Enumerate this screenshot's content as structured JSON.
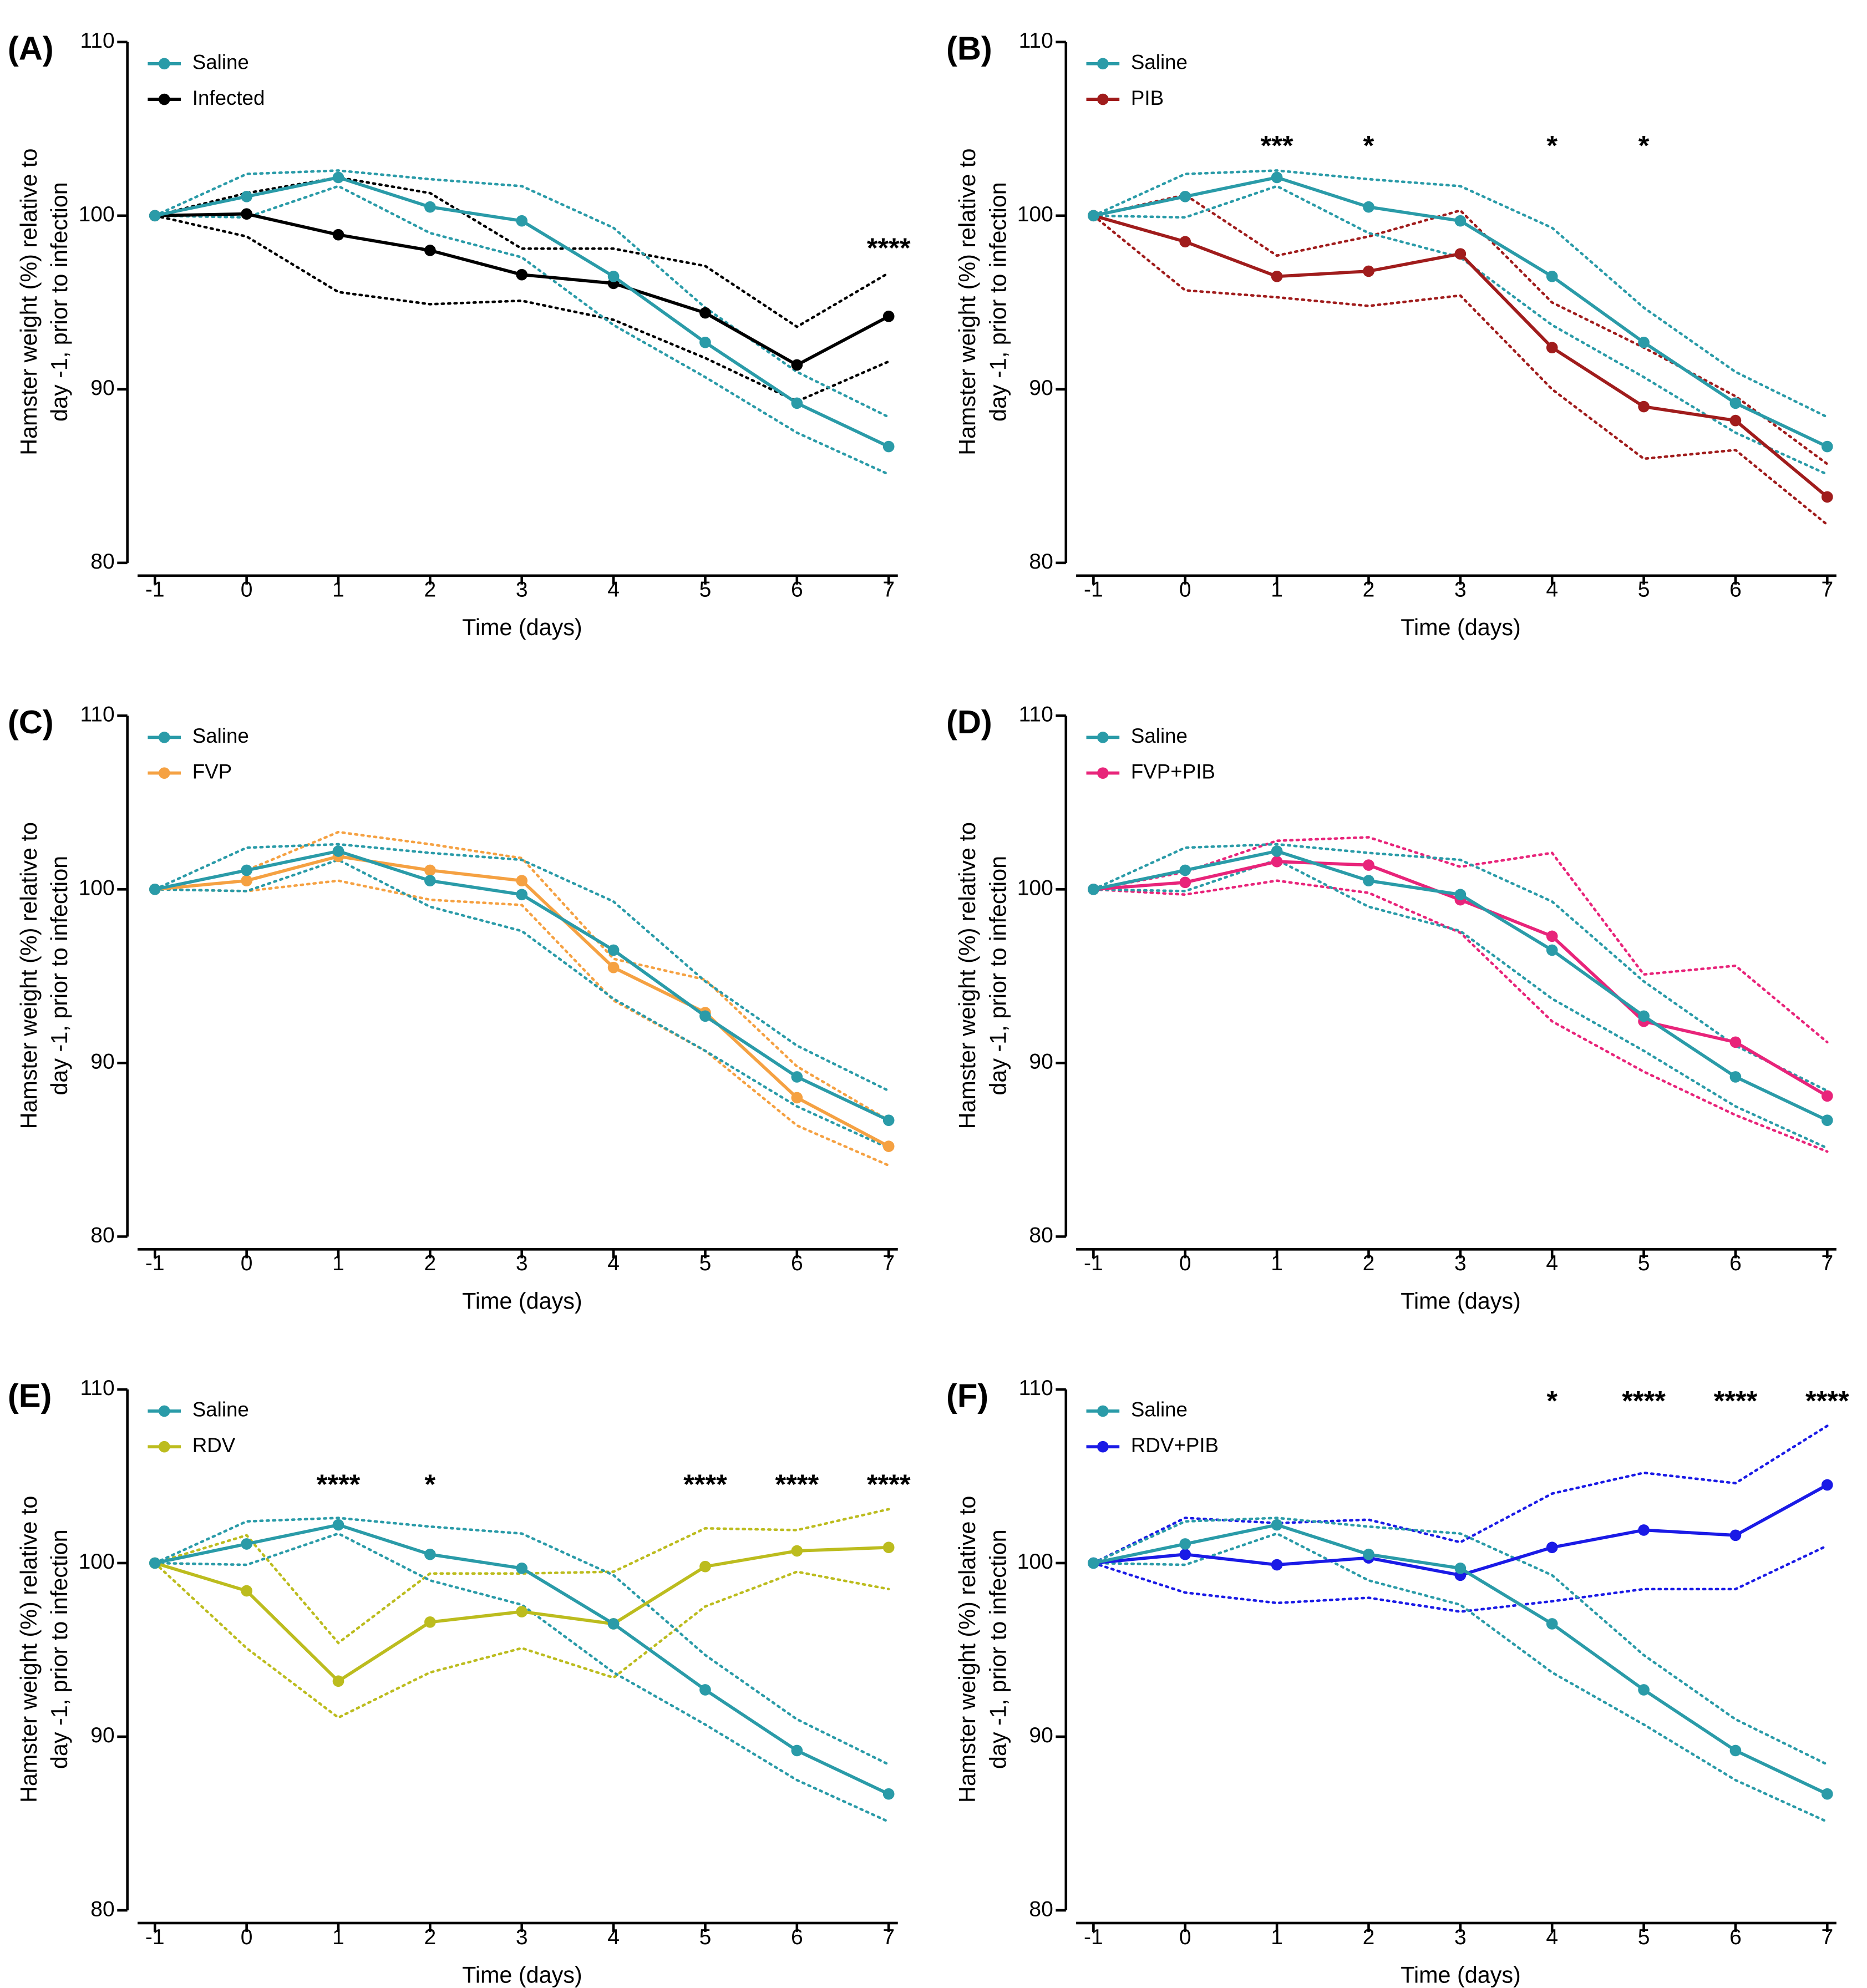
{
  "chart_data": [
    {
      "type": "line",
      "panel_label": "(A)",
      "ylabel": [
        "Hamster weight (%) relative to",
        "day -1, prior to infection"
      ],
      "xlabel": "Time (days)",
      "x": [
        -1,
        0,
        1,
        2,
        3,
        4,
        5,
        6,
        7
      ],
      "xlim": [
        -1.3,
        7.1
      ],
      "xticks": [
        -1,
        0,
        1,
        2,
        3,
        4,
        5,
        6,
        7
      ],
      "ylim": [
        80,
        110
      ],
      "yticks": [
        80,
        90,
        100,
        110
      ],
      "series": [
        {
          "name": "Saline",
          "color": "#2a9ba8",
          "values": [
            100,
            101.1,
            102.2,
            100.5,
            99.7,
            96.5,
            92.7,
            89.2,
            86.7
          ],
          "upper": [
            100,
            102.4,
            102.6,
            102.1,
            101.7,
            99.3,
            94.7,
            91.0,
            88.4
          ],
          "lower": [
            100,
            99.9,
            101.7,
            99.0,
            97.6,
            93.7,
            90.7,
            87.5,
            85.1
          ]
        },
        {
          "name": "Infected",
          "color": "#000000",
          "values": [
            100,
            100.1,
            98.9,
            98.0,
            96.6,
            96.1,
            94.4,
            91.4,
            94.2
          ],
          "upper": [
            100,
            101.3,
            102.2,
            101.3,
            98.1,
            98.1,
            97.1,
            93.6,
            96.7
          ],
          "lower": [
            100,
            98.8,
            95.6,
            94.9,
            95.1,
            94.0,
            91.8,
            89.3,
            91.6
          ]
        }
      ],
      "annotations": [
        {
          "x": 7,
          "text": "****"
        }
      ]
    },
    {
      "type": "line",
      "panel_label": "(B)",
      "ylabel": [
        "Hamster weight (%) relative to",
        "day -1, prior to infection"
      ],
      "xlabel": "Time (days)",
      "x": [
        -1,
        0,
        1,
        2,
        3,
        4,
        5,
        6,
        7
      ],
      "xlim": [
        -1.3,
        7.1
      ],
      "xticks": [
        -1,
        0,
        1,
        2,
        3,
        4,
        5,
        6,
        7
      ],
      "ylim": [
        80,
        110
      ],
      "yticks": [
        80,
        90,
        100,
        110
      ],
      "series": [
        {
          "name": "Saline",
          "color": "#2a9ba8",
          "values": [
            100,
            101.1,
            102.2,
            100.5,
            99.7,
            96.5,
            92.7,
            89.2,
            86.7
          ],
          "upper": [
            100,
            102.4,
            102.6,
            102.1,
            101.7,
            99.3,
            94.7,
            91.0,
            88.4
          ],
          "lower": [
            100,
            99.9,
            101.7,
            99.0,
            97.6,
            93.7,
            90.7,
            87.5,
            85.1
          ]
        },
        {
          "name": "PIB",
          "color": "#a01c1c",
          "values": [
            100,
            98.5,
            96.5,
            96.8,
            97.8,
            92.4,
            89.0,
            88.2,
            83.8
          ],
          "upper": [
            100,
            101.2,
            97.7,
            98.8,
            100.3,
            95.0,
            92.4,
            89.6,
            85.7
          ],
          "lower": [
            100,
            95.7,
            95.3,
            94.8,
            95.4,
            90.0,
            86.0,
            86.5,
            82.2
          ]
        }
      ],
      "annotations": [
        {
          "x": 1,
          "text": "***"
        },
        {
          "x": 2,
          "text": "*"
        },
        {
          "x": 4,
          "text": "*"
        },
        {
          "x": 5,
          "text": "*"
        }
      ]
    },
    {
      "type": "line",
      "panel_label": "(C)",
      "ylabel": [
        "Hamster weight (%) relative to",
        "day -1, prior to infection"
      ],
      "xlabel": "Time (days)",
      "x": [
        -1,
        0,
        1,
        2,
        3,
        4,
        5,
        6,
        7
      ],
      "xlim": [
        -1.3,
        7.1
      ],
      "xticks": [
        -1,
        0,
        1,
        2,
        3,
        4,
        5,
        6,
        7
      ],
      "ylim": [
        80,
        110
      ],
      "yticks": [
        80,
        90,
        100,
        110
      ],
      "series": [
        {
          "name": "Saline",
          "color": "#2a9ba8",
          "values": [
            100,
            101.1,
            102.2,
            100.5,
            99.7,
            96.5,
            92.7,
            89.2,
            86.7
          ],
          "upper": [
            100,
            102.4,
            102.6,
            102.1,
            101.7,
            99.3,
            94.7,
            91.0,
            88.4
          ],
          "lower": [
            100,
            99.9,
            101.7,
            99.0,
            97.6,
            93.7,
            90.7,
            87.5,
            85.1
          ]
        },
        {
          "name": "FVP",
          "color": "#f5a142",
          "values": [
            100,
            100.5,
            101.9,
            101.1,
            100.5,
            95.5,
            92.9,
            88.0,
            85.2
          ],
          "upper": [
            100,
            101.1,
            103.3,
            102.6,
            101.8,
            96.0,
            94.8,
            89.8,
            86.7
          ],
          "lower": [
            100,
            99.9,
            100.5,
            99.4,
            99.1,
            93.6,
            90.7,
            86.4,
            84.1
          ]
        }
      ],
      "annotations": []
    },
    {
      "type": "line",
      "panel_label": "(D)",
      "ylabel": [
        "Hamster weight (%) relative to",
        "day -1, prior to infection"
      ],
      "xlabel": "Time (days)",
      "x": [
        -1,
        0,
        1,
        2,
        3,
        4,
        5,
        6,
        7
      ],
      "xlim": [
        -1.3,
        7.1
      ],
      "xticks": [
        -1,
        0,
        1,
        2,
        3,
        4,
        5,
        6,
        7
      ],
      "ylim": [
        80,
        110
      ],
      "yticks": [
        80,
        90,
        100,
        110
      ],
      "series": [
        {
          "name": "Saline",
          "color": "#2a9ba8",
          "values": [
            100,
            101.1,
            102.2,
            100.5,
            99.7,
            96.5,
            92.7,
            89.2,
            86.7
          ],
          "upper": [
            100,
            102.4,
            102.6,
            102.1,
            101.7,
            99.3,
            94.7,
            91.0,
            88.4
          ],
          "lower": [
            100,
            99.9,
            101.7,
            99.0,
            97.6,
            93.7,
            90.7,
            87.5,
            85.1
          ]
        },
        {
          "name": "FVP+PIB",
          "color": "#e8247a",
          "values": [
            100,
            100.4,
            101.6,
            101.4,
            99.4,
            97.3,
            92.4,
            91.2,
            88.1
          ],
          "upper": [
            100,
            101.0,
            102.8,
            103.0,
            101.3,
            102.1,
            95.1,
            95.6,
            91.2
          ],
          "lower": [
            100,
            99.7,
            100.5,
            99.8,
            97.5,
            92.4,
            89.5,
            87.0,
            84.9
          ]
        }
      ],
      "annotations": []
    },
    {
      "type": "line",
      "panel_label": "(E)",
      "ylabel": [
        "Hamster weight (%) relative to",
        "day -1, prior to infection"
      ],
      "xlabel": "Time (days)",
      "x": [
        -1,
        0,
        1,
        2,
        3,
        4,
        5,
        6,
        7
      ],
      "xlim": [
        -1.3,
        7.1
      ],
      "xticks": [
        -1,
        0,
        1,
        2,
        3,
        4,
        5,
        6,
        7
      ],
      "ylim": [
        80,
        110
      ],
      "yticks": [
        80,
        90,
        100,
        110
      ],
      "series": [
        {
          "name": "Saline",
          "color": "#2a9ba8",
          "values": [
            100,
            101.1,
            102.2,
            100.5,
            99.7,
            96.5,
            92.7,
            89.2,
            86.7
          ],
          "upper": [
            100,
            102.4,
            102.6,
            102.1,
            101.7,
            99.3,
            94.7,
            91.0,
            88.4
          ],
          "lower": [
            100,
            99.9,
            101.7,
            99.0,
            97.6,
            93.7,
            90.7,
            87.5,
            85.1
          ]
        },
        {
          "name": "RDV",
          "color": "#bcbc1e",
          "values": [
            100,
            98.4,
            93.2,
            96.6,
            97.2,
            96.5,
            99.8,
            100.7,
            100.9
          ],
          "upper": [
            100,
            101.6,
            95.4,
            99.4,
            99.4,
            99.5,
            102.0,
            101.9,
            103.1
          ],
          "lower": [
            100,
            95.1,
            91.1,
            93.7,
            95.1,
            93.4,
            97.5,
            99.5,
            98.5
          ]
        }
      ],
      "annotations": [
        {
          "x": 1,
          "text": "****"
        },
        {
          "x": 2,
          "text": "*"
        },
        {
          "x": 5,
          "text": "****"
        },
        {
          "x": 6,
          "text": "****"
        },
        {
          "x": 7,
          "text": "****"
        }
      ]
    },
    {
      "type": "line",
      "panel_label": "(F)",
      "ylabel": [
        "Hamster weight (%) relative to",
        "day -1, prior to infection"
      ],
      "xlabel": "Time (days)",
      "x": [
        -1,
        0,
        1,
        2,
        3,
        4,
        5,
        6,
        7
      ],
      "xlim": [
        -1.3,
        7.1
      ],
      "xticks": [
        -1,
        0,
        1,
        2,
        3,
        4,
        5,
        6,
        7
      ],
      "ylim": [
        80,
        110
      ],
      "yticks": [
        80,
        90,
        100,
        110
      ],
      "series": [
        {
          "name": "Saline",
          "color": "#2a9ba8",
          "values": [
            100,
            101.1,
            102.2,
            100.5,
            99.7,
            96.5,
            92.7,
            89.2,
            86.7
          ],
          "upper": [
            100,
            102.4,
            102.6,
            102.1,
            101.7,
            99.3,
            94.7,
            91.0,
            88.4
          ],
          "lower": [
            100,
            99.9,
            101.7,
            99.0,
            97.6,
            93.7,
            90.7,
            87.5,
            85.1
          ]
        },
        {
          "name": "RDV+PIB",
          "color": "#1a1ae6",
          "values": [
            100,
            100.5,
            99.9,
            100.3,
            99.3,
            100.9,
            101.9,
            101.6,
            104.5
          ],
          "upper": [
            100,
            102.6,
            102.3,
            102.5,
            101.2,
            104.0,
            105.2,
            104.6,
            107.9
          ],
          "lower": [
            100,
            98.3,
            97.7,
            98.0,
            97.2,
            97.8,
            98.5,
            98.5,
            101.0
          ]
        }
      ],
      "annotations": [
        {
          "x": 4,
          "text": "*"
        },
        {
          "x": 5,
          "text": "****"
        },
        {
          "x": 6,
          "text": "****"
        },
        {
          "x": 7,
          "text": "****"
        }
      ]
    }
  ]
}
